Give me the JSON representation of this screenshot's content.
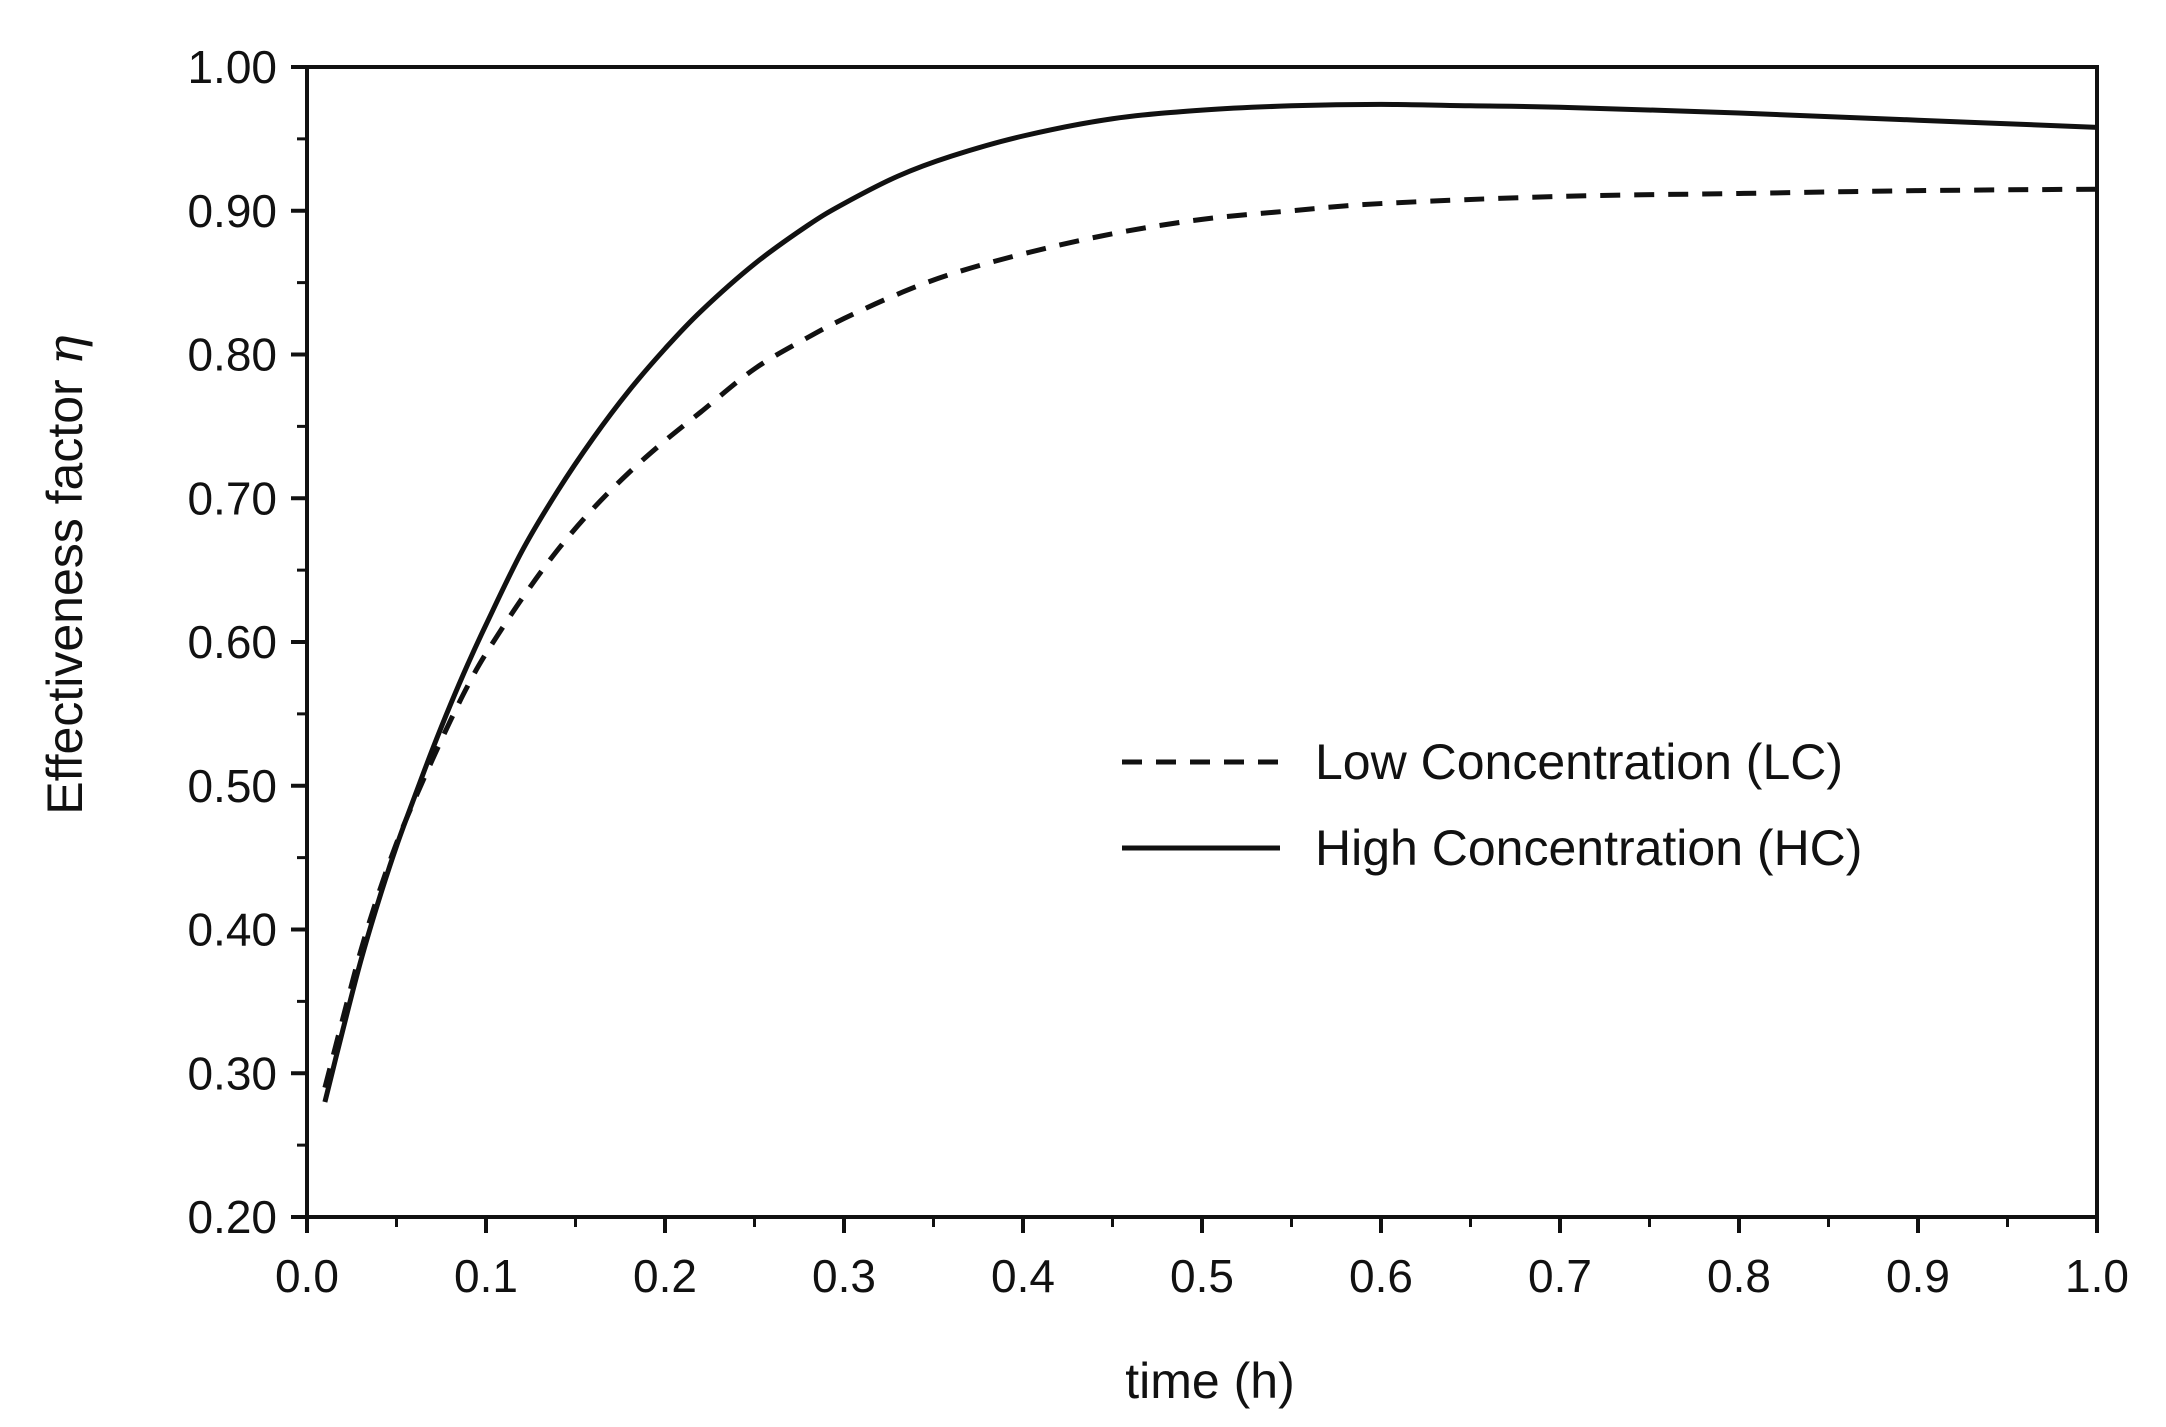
{
  "chart_data": {
    "type": "line",
    "title": "",
    "xlabel": "time (h)",
    "ylabel": "Effectiveness factor",
    "ylabel_symbol": "η",
    "xlim": [
      0.0,
      1.0
    ],
    "ylim": [
      0.2,
      1.0
    ],
    "x_ticks": [
      0.0,
      0.1,
      0.2,
      0.3,
      0.4,
      0.5,
      0.6,
      0.7,
      0.8,
      0.9,
      1.0
    ],
    "x_tick_labels": [
      "0.0",
      "0.1",
      "0.2",
      "0.3",
      "0.4",
      "0.5",
      "0.6",
      "0.7",
      "0.8",
      "0.9",
      "1.0"
    ],
    "y_ticks": [
      0.2,
      0.3,
      0.4,
      0.5,
      0.6,
      0.7,
      0.8,
      0.9,
      1.0
    ],
    "y_tick_labels": [
      "0.20",
      "0.30",
      "0.40",
      "0.50",
      "0.60",
      "0.70",
      "0.80",
      "0.90",
      "1.00"
    ],
    "grid": false,
    "legend_position": "center-right",
    "series": [
      {
        "name": "Low Concentration (LC)",
        "style": "dashed",
        "color": "#111111",
        "x": [
          0.01,
          0.02,
          0.03,
          0.04,
          0.05,
          0.06,
          0.07,
          0.08,
          0.09,
          0.1,
          0.12,
          0.14,
          0.16,
          0.18,
          0.2,
          0.22,
          0.25,
          0.28,
          0.3,
          0.33,
          0.36,
          0.4,
          0.45,
          0.5,
          0.55,
          0.6,
          0.7,
          0.8,
          0.9,
          1.0
        ],
        "values": [
          0.29,
          0.338,
          0.385,
          0.425,
          0.46,
          0.49,
          0.518,
          0.545,
          0.57,
          0.592,
          0.63,
          0.664,
          0.693,
          0.718,
          0.74,
          0.76,
          0.79,
          0.812,
          0.825,
          0.842,
          0.856,
          0.87,
          0.884,
          0.894,
          0.9,
          0.905,
          0.91,
          0.912,
          0.914,
          0.915
        ]
      },
      {
        "name": "High Concentration (HC)",
        "style": "solid",
        "color": "#111111",
        "x": [
          0.01,
          0.02,
          0.03,
          0.04,
          0.05,
          0.06,
          0.07,
          0.08,
          0.09,
          0.1,
          0.12,
          0.14,
          0.16,
          0.18,
          0.2,
          0.22,
          0.25,
          0.28,
          0.3,
          0.33,
          0.36,
          0.4,
          0.45,
          0.5,
          0.55,
          0.6,
          0.65,
          0.7,
          0.8,
          0.9,
          1.0
        ],
        "values": [
          0.28,
          0.33,
          0.378,
          0.42,
          0.458,
          0.492,
          0.525,
          0.556,
          0.585,
          0.612,
          0.663,
          0.705,
          0.742,
          0.775,
          0.804,
          0.83,
          0.863,
          0.89,
          0.905,
          0.924,
          0.938,
          0.952,
          0.964,
          0.97,
          0.973,
          0.974,
          0.973,
          0.972,
          0.968,
          0.963,
          0.958
        ]
      }
    ]
  }
}
